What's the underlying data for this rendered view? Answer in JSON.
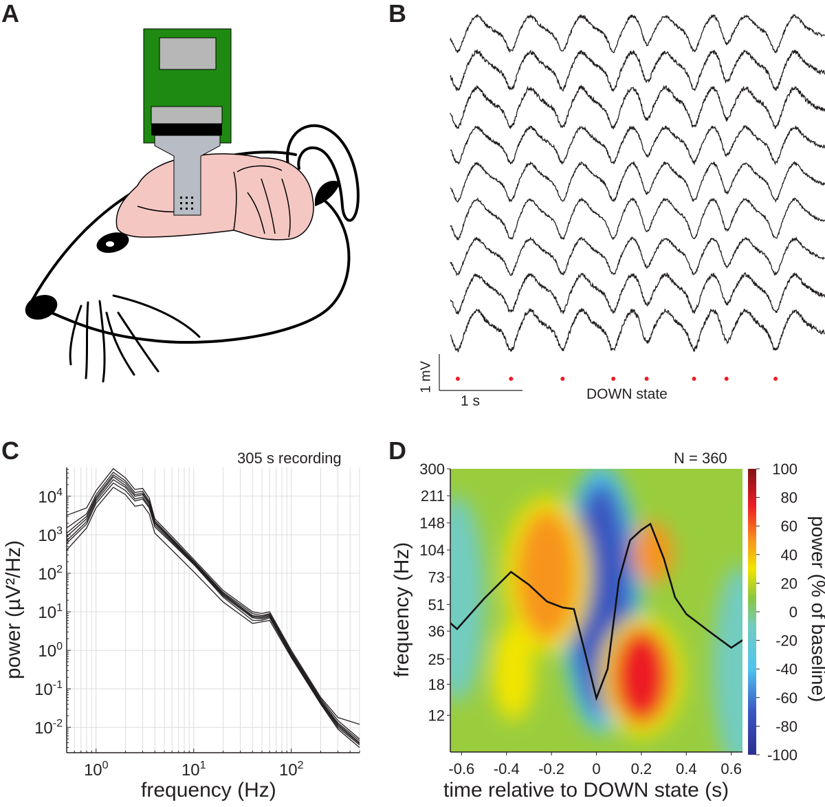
{
  "panels": {
    "a": "A",
    "b": "B",
    "c": "C",
    "d": "D"
  },
  "panel_b": {
    "scale_v_label": "1 mV",
    "scale_h_label": "1 s",
    "marker_label": "DOWN state",
    "marker_color": "#ed1c24",
    "trace_color": "#231f20"
  },
  "panel_c": {
    "annotation": "305 s recording"
  },
  "panel_d": {
    "annotation": "N = 360",
    "colorbar_label": "power (% of baseline)"
  },
  "chart_data": [
    {
      "panel": "B",
      "type": "line",
      "title": "",
      "n_traces": 9,
      "scale_bar": {
        "vertical": "1 mV",
        "horizontal": "1 s"
      },
      "down_state_times_s": [
        0.09,
        0.73,
        1.35,
        1.96,
        2.36,
        2.93,
        3.32,
        3.91
      ],
      "xlim": [
        0,
        4.5
      ]
    },
    {
      "panel": "C",
      "type": "line",
      "xlabel": "frequency (Hz)",
      "ylabel": "power (µV²/Hz)",
      "xscale": "log",
      "yscale": "log",
      "xlim": [
        0.5,
        500
      ],
      "ylim": [
        0.0022,
        56000
      ],
      "xticks": [
        "10^0",
        "10^1",
        "10^2"
      ],
      "yticks": [
        "10^-2",
        "10^-1",
        "10^0",
        "10^1",
        "10^2",
        "10^3",
        "10^4"
      ],
      "grid": true,
      "x": [
        0.5,
        0.8,
        1,
        1.5,
        2,
        2.5,
        3,
        3.5,
        4,
        6,
        10,
        20,
        40,
        50,
        60,
        100,
        200,
        300,
        500
      ],
      "series": [
        {
          "values": [
            3200,
            5000,
            14000,
            52000,
            30000,
            15000,
            16000,
            9000,
            2600,
            900,
            230,
            36,
            10,
            9,
            10,
            1.0,
            0.06,
            0.018,
            0.012
          ]
        },
        {
          "values": [
            1500,
            3500,
            11000,
            42000,
            25000,
            12500,
            13500,
            7500,
            2300,
            800,
            210,
            32,
            9,
            8,
            9,
            0.9,
            0.055,
            0.015,
            0.005
          ]
        },
        {
          "values": [
            1100,
            3000,
            9500,
            36000,
            22000,
            11000,
            12000,
            6800,
            2100,
            750,
            200,
            30,
            8,
            7.5,
            8.5,
            0.85,
            0.05,
            0.013,
            0.0045
          ]
        },
        {
          "values": [
            900,
            2600,
            8500,
            32000,
            19000,
            10000,
            11000,
            6200,
            2000,
            700,
            190,
            28,
            7.5,
            7,
            8,
            0.8,
            0.048,
            0.012,
            0.004
          ]
        },
        {
          "values": [
            700,
            2200,
            7500,
            27000,
            17000,
            8500,
            9500,
            5500,
            1800,
            650,
            180,
            26,
            7,
            6.5,
            7.5,
            0.75,
            0.045,
            0.011,
            0.0038
          ]
        },
        {
          "values": [
            600,
            1900,
            6500,
            22000,
            14000,
            7500,
            8500,
            5000,
            1600,
            600,
            170,
            24,
            6,
            6,
            7,
            0.7,
            0.042,
            0.01,
            0.0035
          ]
        },
        {
          "values": [
            400,
            1500,
            5000,
            17000,
            11000,
            5500,
            6000,
            3500,
            1100,
            400,
            110,
            18,
            5,
            5.5,
            6,
            0.65,
            0.04,
            0.009,
            0.003
          ]
        }
      ]
    },
    {
      "panel": "D",
      "type": "heatmap",
      "xlabel": "time relative to DOWN state (s)",
      "ylabel": "frequency (Hz)",
      "xlim": [
        -0.65,
        0.65
      ],
      "xticks": [
        -0.6,
        -0.4,
        -0.2,
        0,
        0.2,
        0.4,
        0.6
      ],
      "yticks": [
        300,
        211,
        148,
        104,
        73,
        51,
        36,
        25,
        18,
        12
      ],
      "yscale": "log",
      "colorbar": {
        "label": "power (% of baseline)",
        "range": [
          -100,
          100
        ],
        "ticks": [
          100,
          80,
          60,
          40,
          20,
          0,
          -20,
          -40,
          -60,
          -80,
          -100
        ],
        "colormap": "jet"
      },
      "background_value": 5,
      "features": [
        {
          "time": 0.02,
          "freq": 55,
          "value": -80
        },
        {
          "time": 0.2,
          "freq": 20,
          "value": 60
        },
        {
          "time": -0.22,
          "freq": 75,
          "value": 45
        },
        {
          "time": -0.37,
          "freq": 21,
          "value": 30
        },
        {
          "time": 0.25,
          "freq": 100,
          "value": 35
        },
        {
          "time": -0.62,
          "freq": 55,
          "value": -30
        },
        {
          "time": 0.64,
          "freq": 22,
          "value": -25
        }
      ],
      "overlay_trace": {
        "time": [
          -0.65,
          -0.62,
          -0.5,
          -0.38,
          -0.3,
          -0.22,
          -0.15,
          -0.1,
          -0.05,
          0,
          0.05,
          0.1,
          0.15,
          0.2,
          0.24,
          0.3,
          0.35,
          0.4,
          0.5,
          0.6,
          0.65
        ],
        "values": [
          40,
          37,
          55,
          78,
          66,
          53,
          49,
          48,
          27,
          15,
          22,
          70,
          118,
          135,
          146,
          93,
          56,
          45,
          36,
          29,
          32
        ]
      }
    }
  ]
}
